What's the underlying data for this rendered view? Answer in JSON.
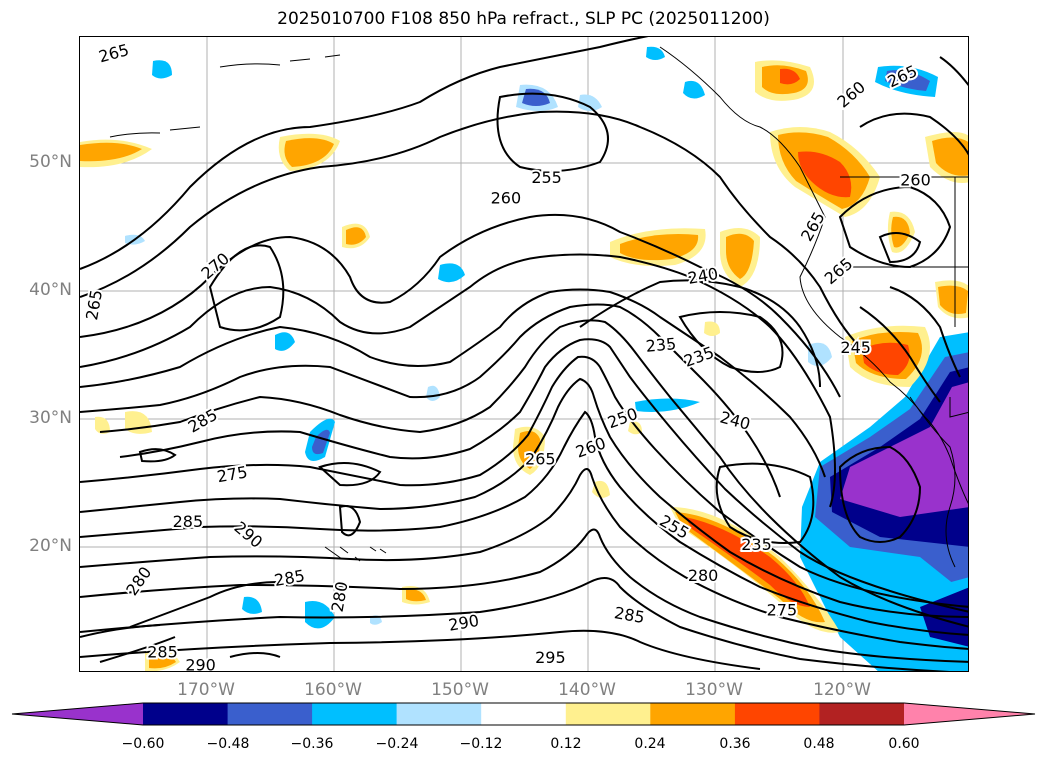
{
  "title": "2025010700 F108 850 hPa refract., SLP PC (2025011200)",
  "map": {
    "lat_ticks": [
      "50°N",
      "40°N",
      "30°N",
      "20°N"
    ],
    "lon_ticks": [
      "170°W",
      "160°W",
      "150°W",
      "140°W",
      "130°W",
      "120°W"
    ],
    "contour_labels": [
      {
        "text": "265",
        "lon": -177.3,
        "lat": 58.5,
        "rot": -15
      },
      {
        "text": "255",
        "lon": -143.3,
        "lat": 48.8,
        "rot": 0
      },
      {
        "text": "260",
        "lon": -146.5,
        "lat": 47.2,
        "rot": 0
      },
      {
        "text": "270",
        "lon": -169.3,
        "lat": 41.9,
        "rot": -40
      },
      {
        "text": "265",
        "lon": -178.8,
        "lat": 38.9,
        "rot": -80
      },
      {
        "text": "240",
        "lon": -131.0,
        "lat": 41.1,
        "rot": -10
      },
      {
        "text": "235",
        "lon": -134.3,
        "lat": 35.7,
        "rot": -5
      },
      {
        "text": "235",
        "lon": -131.3,
        "lat": 34.8,
        "rot": -20
      },
      {
        "text": "250",
        "lon": -137.3,
        "lat": 30.0,
        "rot": -20
      },
      {
        "text": "240",
        "lon": -128.5,
        "lat": 29.8,
        "rot": 15
      },
      {
        "text": "260",
        "lon": -139.8,
        "lat": 27.7,
        "rot": -20
      },
      {
        "text": "265",
        "lon": -143.8,
        "lat": 26.8,
        "rot": 0
      },
      {
        "text": "285",
        "lon": -170.3,
        "lat": 29.8,
        "rot": -30
      },
      {
        "text": "275",
        "lon": -168.0,
        "lat": 25.6,
        "rot": -10
      },
      {
        "text": "285",
        "lon": -171.5,
        "lat": 21.9,
        "rot": 0
      },
      {
        "text": "290",
        "lon": -166.8,
        "lat": 20.9,
        "rot": 40
      },
      {
        "text": "285",
        "lon": -163.5,
        "lat": 17.5,
        "rot": -10
      },
      {
        "text": "280",
        "lon": -175.3,
        "lat": 17.3,
        "rot": -55
      },
      {
        "text": "280",
        "lon": -159.5,
        "lat": 16.1,
        "rot": -80
      },
      {
        "text": "255",
        "lon": -133.3,
        "lat": 21.5,
        "rot": 30
      },
      {
        "text": "280",
        "lon": -131.0,
        "lat": 17.7,
        "rot": 0
      },
      {
        "text": "235",
        "lon": -126.8,
        "lat": 20.1,
        "rot": 0
      },
      {
        "text": "275",
        "lon": -124.8,
        "lat": 15.0,
        "rot": 0
      },
      {
        "text": "285",
        "lon": -136.8,
        "lat": 14.6,
        "rot": 10
      },
      {
        "text": "290",
        "lon": -149.8,
        "lat": 14.0,
        "rot": -10
      },
      {
        "text": "295",
        "lon": -143.0,
        "lat": 11.3,
        "rot": 0
      },
      {
        "text": "285",
        "lon": -173.5,
        "lat": 11.7,
        "rot": 0
      },
      {
        "text": "290",
        "lon": -170.5,
        "lat": 10.7,
        "rot": 0
      },
      {
        "text": "260",
        "lon": -119.3,
        "lat": 55.3,
        "rot": -40
      },
      {
        "text": "265",
        "lon": -115.3,
        "lat": 56.7,
        "rot": -25
      },
      {
        "text": "260",
        "lon": -114.3,
        "lat": 48.6,
        "rot": 0
      },
      {
        "text": "265",
        "lon": -122.3,
        "lat": 45.0,
        "rot": -60
      },
      {
        "text": "265",
        "lon": -120.3,
        "lat": 41.5,
        "rot": -40
      },
      {
        "text": "245",
        "lon": -119.0,
        "lat": 35.5,
        "rot": 0
      }
    ]
  },
  "colorbar": {
    "ticks": [
      "−0.60",
      "−0.48",
      "−0.36",
      "−0.24",
      "−0.12",
      "0.12",
      "0.24",
      "0.36",
      "0.48",
      "0.60"
    ],
    "colors": [
      "#9932cc",
      "#00008b",
      "#3a5fcd",
      "#00bfff",
      "#b0e2ff",
      "#ffffff",
      "#fff08f",
      "#ffa500",
      "#ff4500",
      "#b22222",
      "#ff82ab"
    ]
  }
}
